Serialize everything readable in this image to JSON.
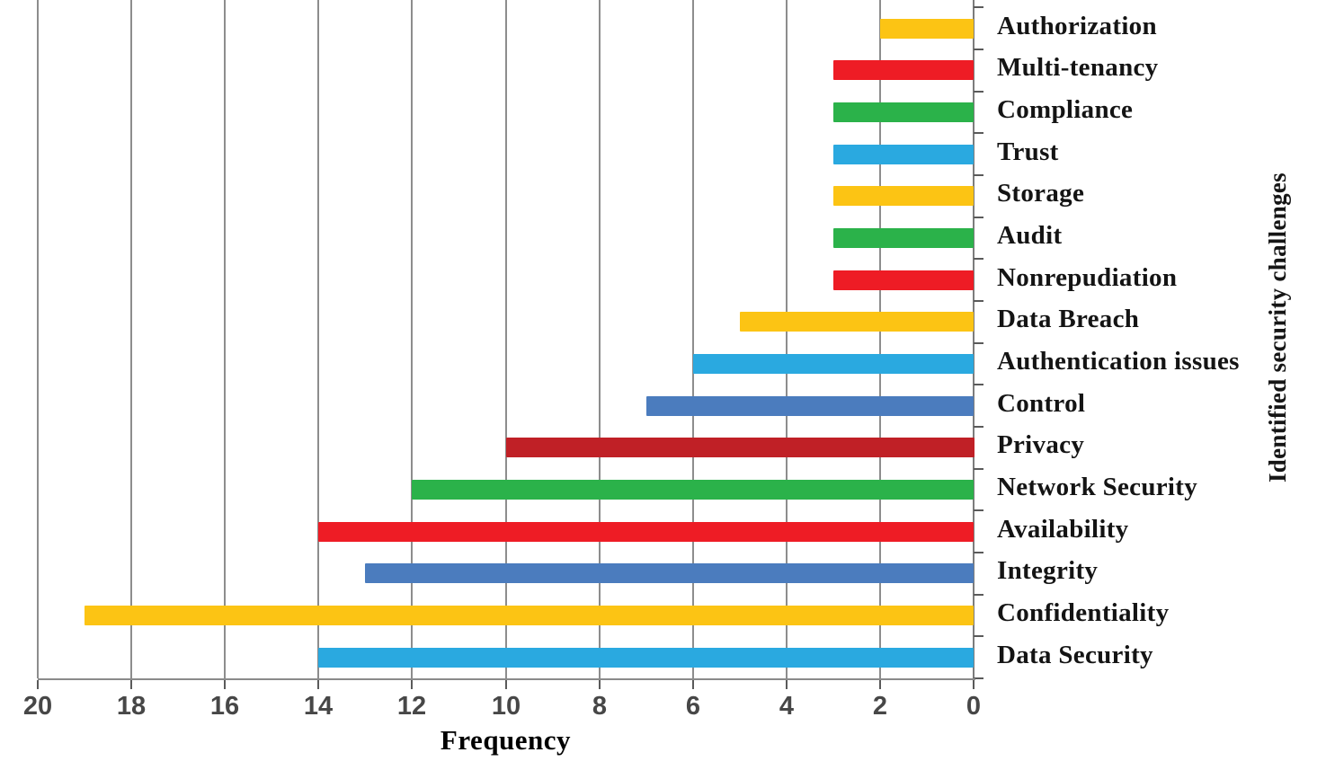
{
  "chart_data": {
    "type": "bar",
    "orientation": "horizontal",
    "xlabel": "Frequency",
    "ylabel": "Identified security challenges",
    "x_axis": {
      "min": 0,
      "max": 20,
      "tick_step": 2,
      "reversed": true,
      "tick_labels": [
        "20",
        "18",
        "16",
        "14",
        "12",
        "10",
        "8",
        "6",
        "4",
        "2",
        "0"
      ]
    },
    "grid": "vertical-on",
    "legend": "none",
    "categories_top_to_bottom": [
      {
        "label": "Authorization",
        "value": 2,
        "color": "#FCC414"
      },
      {
        "label": "Multi-tenancy",
        "value": 3,
        "color": "#EE1C25"
      },
      {
        "label": "Compliance",
        "value": 3,
        "color": "#2BB24A"
      },
      {
        "label": "Trust",
        "value": 3,
        "color": "#2AA9E0"
      },
      {
        "label": "Storage",
        "value": 3,
        "color": "#FCC414"
      },
      {
        "label": "Audit",
        "value": 3,
        "color": "#2BB24A"
      },
      {
        "label": "Nonrepudiation",
        "value": 3,
        "color": "#EE1C25"
      },
      {
        "label": "Data Breach",
        "value": 5,
        "color": "#FCC414"
      },
      {
        "label": "Authentication issues",
        "value": 6,
        "color": "#2AA9E0"
      },
      {
        "label": "Control",
        "value": 7,
        "color": "#4B7CBE"
      },
      {
        "label": "Privacy",
        "value": 10,
        "color": "#C02026"
      },
      {
        "label": "Network Security",
        "value": 12,
        "color": "#2BB24A"
      },
      {
        "label": "Availability",
        "value": 14,
        "color": "#EE1C25"
      },
      {
        "label": "Integrity",
        "value": 13,
        "color": "#4B7CBE"
      },
      {
        "label": "Confidentiality",
        "value": 19,
        "color": "#FCC414"
      },
      {
        "label": "Data Security",
        "value": 14,
        "color": "#2AA9E0"
      }
    ],
    "palette": {
      "yellow": "#FCC414",
      "red": "#EE1C25",
      "green": "#2BB24A",
      "cyan": "#2AA9E0",
      "steel_blue": "#4B7CBE",
      "dark_red": "#C02026",
      "gridline_gray": "#8d8d8d"
    }
  }
}
